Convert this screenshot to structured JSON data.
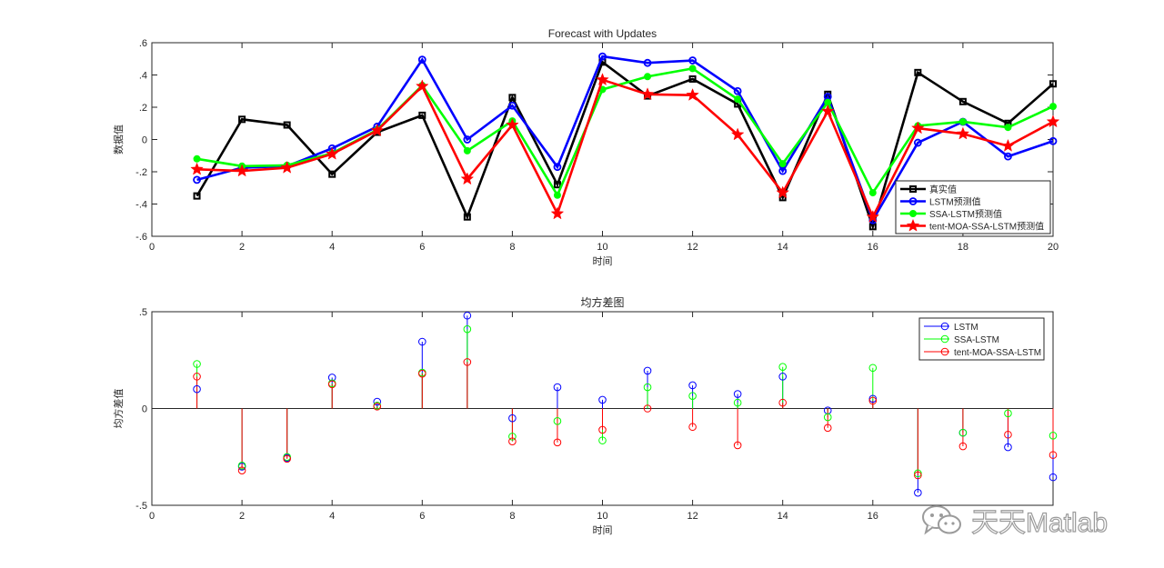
{
  "chart_data": [
    {
      "type": "line",
      "title": "Forecast with Updates",
      "xlabel": "时间",
      "ylabel": "数据值",
      "xlim": [
        0,
        20
      ],
      "ylim": [
        -0.6,
        0.6
      ],
      "xticks": [
        0,
        2,
        4,
        6,
        8,
        10,
        12,
        14,
        16,
        18,
        20
      ],
      "yticks": [
        -0.6,
        -0.4,
        -0.2,
        0,
        0.2,
        0.4,
        0.6
      ],
      "x": [
        1,
        2,
        3,
        4,
        5,
        6,
        7,
        8,
        9,
        10,
        11,
        12,
        13,
        14,
        15,
        16,
        17,
        18,
        19,
        20
      ],
      "legend_position": "bottom-right",
      "series": [
        {
          "name": "真实值",
          "color": "#000000",
          "marker": "square",
          "values": [
            -0.35,
            0.125,
            0.09,
            -0.215,
            0.045,
            0.15,
            -0.48,
            0.26,
            -0.28,
            0.48,
            0.27,
            0.375,
            0.22,
            -0.36,
            0.28,
            -0.54,
            0.415,
            0.235,
            0.1,
            0.345
          ]
        },
        {
          "name": "LSTM预测值",
          "color": "#0000ff",
          "marker": "circle",
          "values": [
            -0.25,
            -0.175,
            -0.165,
            -0.055,
            0.08,
            0.495,
            0.0,
            0.21,
            -0.17,
            0.515,
            0.475,
            0.49,
            0.3,
            -0.195,
            0.265,
            -0.5,
            -0.02,
            0.11,
            -0.105,
            -0.01
          ]
        },
        {
          "name": "SSA-LSTM预测值",
          "color": "#00ff00",
          "marker": "dot",
          "values": [
            -0.12,
            -0.165,
            -0.16,
            -0.085,
            0.06,
            0.335,
            -0.07,
            0.115,
            -0.345,
            0.31,
            0.39,
            0.44,
            0.25,
            -0.15,
            0.23,
            -0.33,
            0.085,
            0.11,
            0.075,
            0.205
          ]
        },
        {
          "name": "tent-MOA-SSA-LSTM预测值",
          "color": "#ff0000",
          "marker": "star",
          "values": [
            -0.185,
            -0.195,
            -0.175,
            -0.09,
            0.055,
            0.33,
            -0.245,
            0.09,
            -0.46,
            0.37,
            0.28,
            0.275,
            0.03,
            -0.33,
            0.175,
            -0.48,
            0.07,
            0.035,
            -0.04,
            0.11
          ]
        }
      ]
    },
    {
      "type": "stem",
      "title": "均方差图",
      "xlabel": "时间",
      "ylabel": "均方差值",
      "xlim": [
        0,
        20
      ],
      "ylim": [
        -0.5,
        0.5
      ],
      "xticks": [
        0,
        2,
        4,
        6,
        8,
        10,
        12,
        14,
        16
      ],
      "yticks": [
        -0.5,
        0,
        0.5
      ],
      "x": [
        1,
        2,
        3,
        4,
        5,
        6,
        7,
        8,
        9,
        10,
        11,
        12,
        13,
        14,
        15,
        16,
        17,
        18,
        19,
        20
      ],
      "legend_position": "top-right",
      "series": [
        {
          "name": "LSTM",
          "color": "#0000ff",
          "values": [
            0.1,
            -0.3,
            -0.255,
            0.16,
            0.035,
            0.345,
            0.48,
            -0.05,
            0.11,
            0.045,
            0.195,
            0.12,
            0.075,
            0.165,
            -0.01,
            0.05,
            -0.435,
            -0.125,
            -0.2,
            -0.355
          ]
        },
        {
          "name": "SSA-LSTM",
          "color": "#00ff00",
          "values": [
            0.23,
            -0.295,
            -0.25,
            0.13,
            0.015,
            0.185,
            0.41,
            -0.145,
            -0.065,
            -0.165,
            0.11,
            0.065,
            0.03,
            0.215,
            -0.045,
            0.21,
            -0.335,
            -0.125,
            -0.025,
            -0.14
          ]
        },
        {
          "name": "tent-MOA-SSA-LSTM",
          "color": "#ff0000",
          "values": [
            0.165,
            -0.32,
            -0.26,
            0.125,
            0.01,
            0.18,
            0.24,
            -0.17,
            -0.175,
            -0.11,
            0.0,
            -0.095,
            -0.19,
            0.03,
            -0.1,
            0.04,
            -0.345,
            -0.195,
            -0.135,
            -0.24
          ]
        }
      ]
    }
  ],
  "watermark": {
    "text": "天天Matlab",
    "icon": "wechat-icon"
  }
}
